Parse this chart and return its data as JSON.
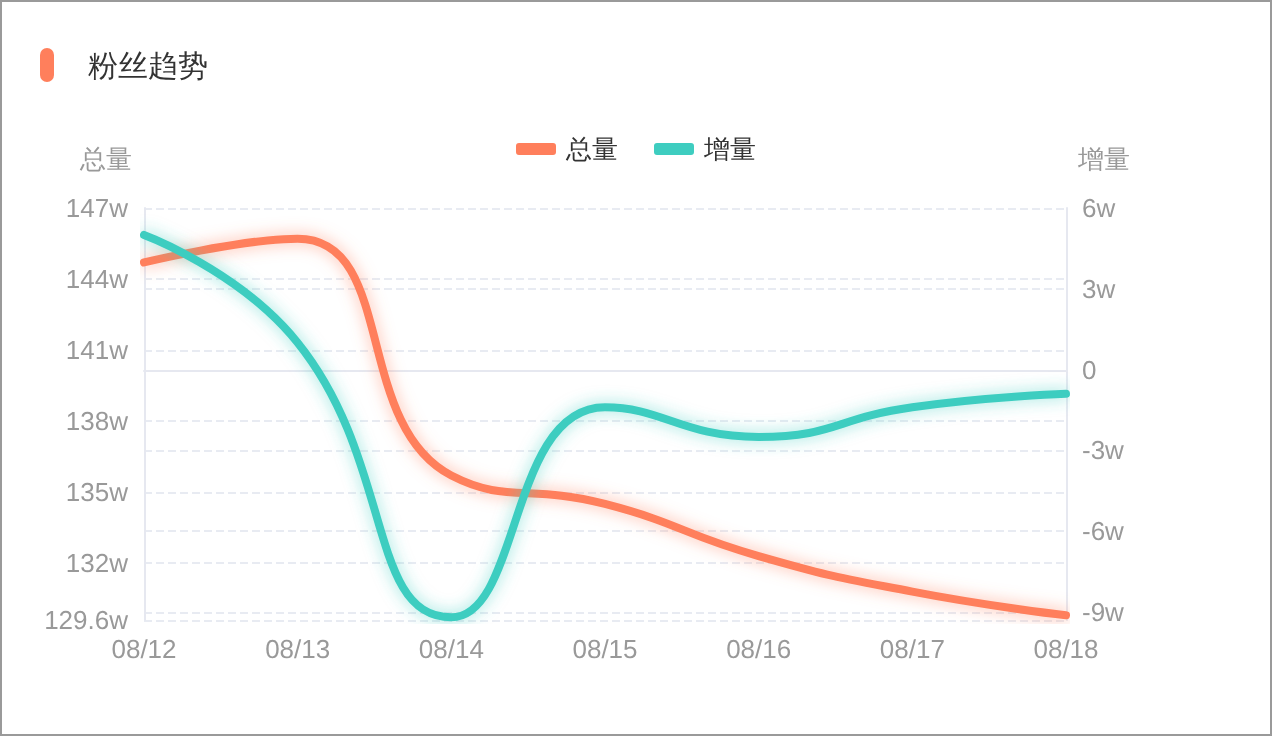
{
  "chart_data": {
    "type": "line",
    "title": "粉丝趋势",
    "ylabel": "总量",
    "y2label": "增量",
    "categories": [
      "08/12",
      "08/13",
      "08/14",
      "08/15",
      "08/16",
      "08/17",
      "08/18"
    ],
    "series": [
      {
        "name": "总量",
        "color": "#ff7f5c",
        "values": [
          144.7,
          145.7,
          135.7,
          134.5,
          132.3,
          130.8,
          129.8
        ]
      },
      {
        "name": "增量",
        "color": "#3ecdc0",
        "axis": "y2",
        "values": [
          5.0,
          1.0,
          -9.2,
          -1.4,
          -2.5,
          -1.4,
          -0.9
        ]
      }
    ],
    "ylim": [
      129.6,
      147
    ],
    "yticks": [
      {
        "value": 129.6,
        "label": "129.6w"
      },
      {
        "value": 132,
        "label": "132w"
      },
      {
        "value": 135,
        "label": "135w"
      },
      {
        "value": 138,
        "label": "138w"
      },
      {
        "value": 141,
        "label": "141w"
      },
      {
        "value": 144,
        "label": "144w"
      },
      {
        "value": 147,
        "label": "147w"
      }
    ],
    "y2lim": [
      -9.3,
      6
    ],
    "y2ticks": [
      {
        "value": -9,
        "label": "-9w"
      },
      {
        "value": -6,
        "label": "-6w"
      },
      {
        "value": -3,
        "label": "-3w"
      },
      0,
      {
        "value": 3,
        "label": "3w"
      },
      {
        "value": 6,
        "label": "6w"
      }
    ],
    "grid": "y",
    "legend": "top",
    "marker": "none",
    "line_style": "solid"
  }
}
